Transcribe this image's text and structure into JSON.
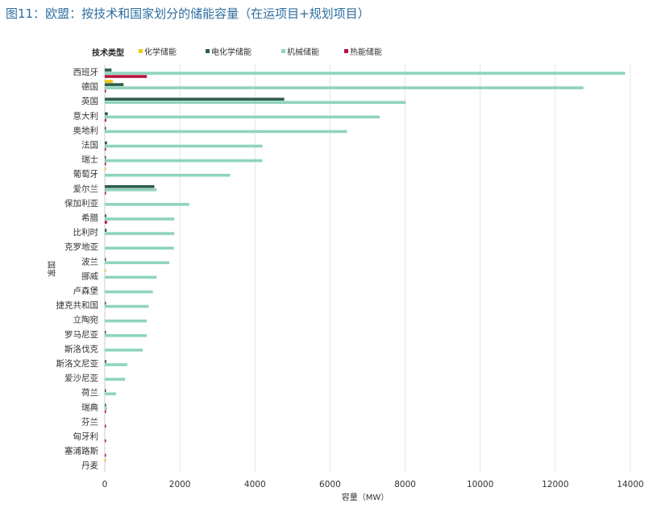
{
  "caption": "图11：欧盟：按技术和国家划分的储能容量（在运项目+规划项目）",
  "chart_data": {
    "type": "bar",
    "orientation": "horizontal",
    "legend_title": "技术类型",
    "xlabel": "容量（MW）",
    "ylabel": "国家",
    "xlim": [
      0,
      14000
    ],
    "xticks": [
      0,
      2000,
      4000,
      6000,
      8000,
      10000,
      12000,
      14000
    ],
    "grid": "vertical",
    "legend_position": "top",
    "categories": [
      "西班牙",
      "德国",
      "英国",
      "意大利",
      "奥地利",
      "法国",
      "瑞士",
      "葡萄牙",
      "爱尔兰",
      "保加利亚",
      "希腊",
      "比利时",
      "克罗地亚",
      "波兰",
      "挪威",
      "卢森堡",
      "捷克共和国",
      "立陶宛",
      "罗马尼亚",
      "斯洛伐克",
      "斯洛文尼亚",
      "爱沙尼亚",
      "荷兰",
      "瑞典",
      "芬兰",
      "匈牙利",
      "塞浦路斯",
      "丹麦"
    ],
    "series": [
      {
        "name": "化学储能",
        "color": "#f2c80f",
        "values": [
          0,
          220,
          0,
          0,
          0,
          0,
          0,
          20,
          0,
          0,
          0,
          0,
          0,
          0,
          20,
          0,
          0,
          0,
          0,
          0,
          0,
          0,
          0,
          0,
          0,
          0,
          0,
          10
        ]
      },
      {
        "name": "电化学储能",
        "color": "#2e5e4e",
        "values": [
          180,
          500,
          4780,
          80,
          20,
          60,
          30,
          0,
          1320,
          0,
          40,
          50,
          0,
          30,
          0,
          0,
          20,
          0,
          20,
          0,
          40,
          0,
          20,
          20,
          0,
          0,
          0,
          0
        ]
      },
      {
        "name": "机械储能",
        "color": "#8fd4bd",
        "values": [
          13860,
          12750,
          8020,
          7320,
          6450,
          4200,
          4200,
          3340,
          1380,
          2250,
          1850,
          1850,
          1840,
          1720,
          1380,
          1280,
          1170,
          1120,
          1120,
          1010,
          600,
          540,
          300,
          60,
          0,
          0,
          0,
          0
        ]
      },
      {
        "name": "热能储能",
        "color": "#b5143c",
        "values": [
          1120,
          30,
          0,
          40,
          0,
          20,
          20,
          0,
          20,
          0,
          60,
          0,
          0,
          0,
          0,
          0,
          0,
          0,
          0,
          0,
          0,
          0,
          0,
          10,
          10,
          10,
          10,
          0
        ]
      }
    ]
  }
}
